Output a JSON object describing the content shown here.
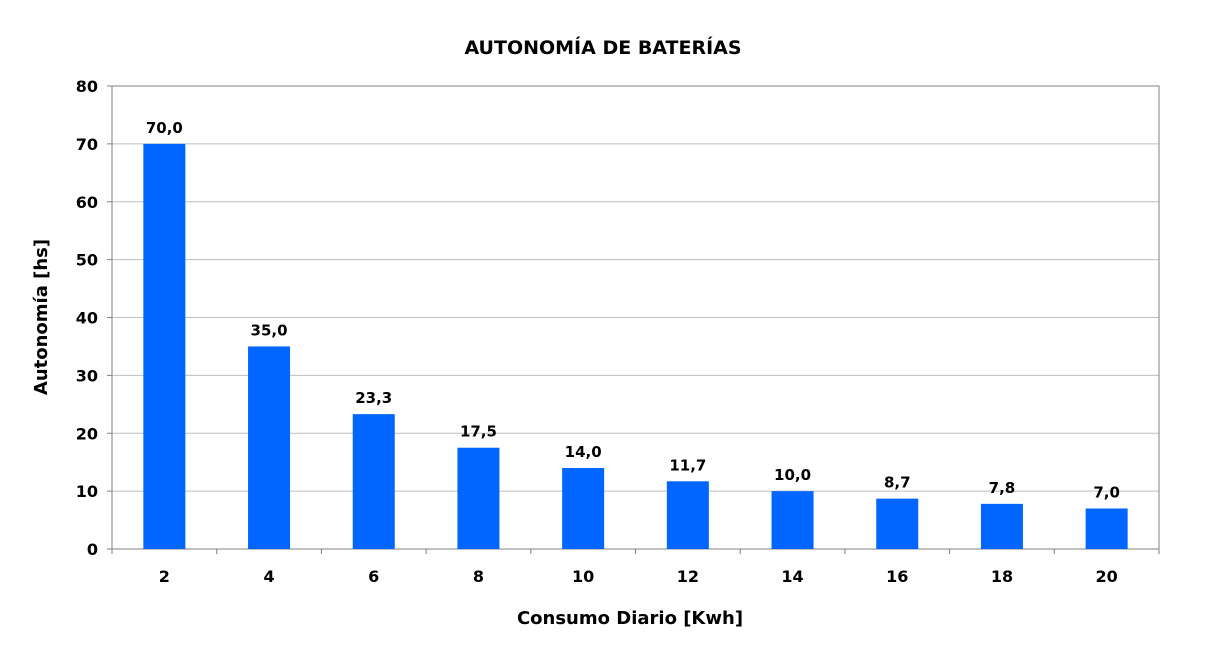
{
  "chart_data": {
    "type": "bar",
    "title": "AUTONOMÍA DE BATERÍAS",
    "xlabel": "Consumo Diario [Kwh]",
    "ylabel": "Autonomía [hs]",
    "categories": [
      "2",
      "4",
      "6",
      "8",
      "10",
      "12",
      "14",
      "16",
      "18",
      "20"
    ],
    "values": [
      70.0,
      35.0,
      23.3,
      17.5,
      14.0,
      11.7,
      10.0,
      8.7,
      7.8,
      7.0
    ],
    "value_labels": [
      "70,0",
      "35,0",
      "23,3",
      "17,5",
      "14,0",
      "11,7",
      "10,0",
      "8,7",
      "7,8",
      "7,0"
    ],
    "ylim": [
      0,
      80
    ],
    "yticks": [
      0,
      10,
      20,
      30,
      40,
      50,
      60,
      70,
      80
    ],
    "grid": true,
    "legend": "none",
    "bar_color": "#0066FF",
    "grid_color": "#BFBFBF",
    "axis_color": "#808080"
  }
}
